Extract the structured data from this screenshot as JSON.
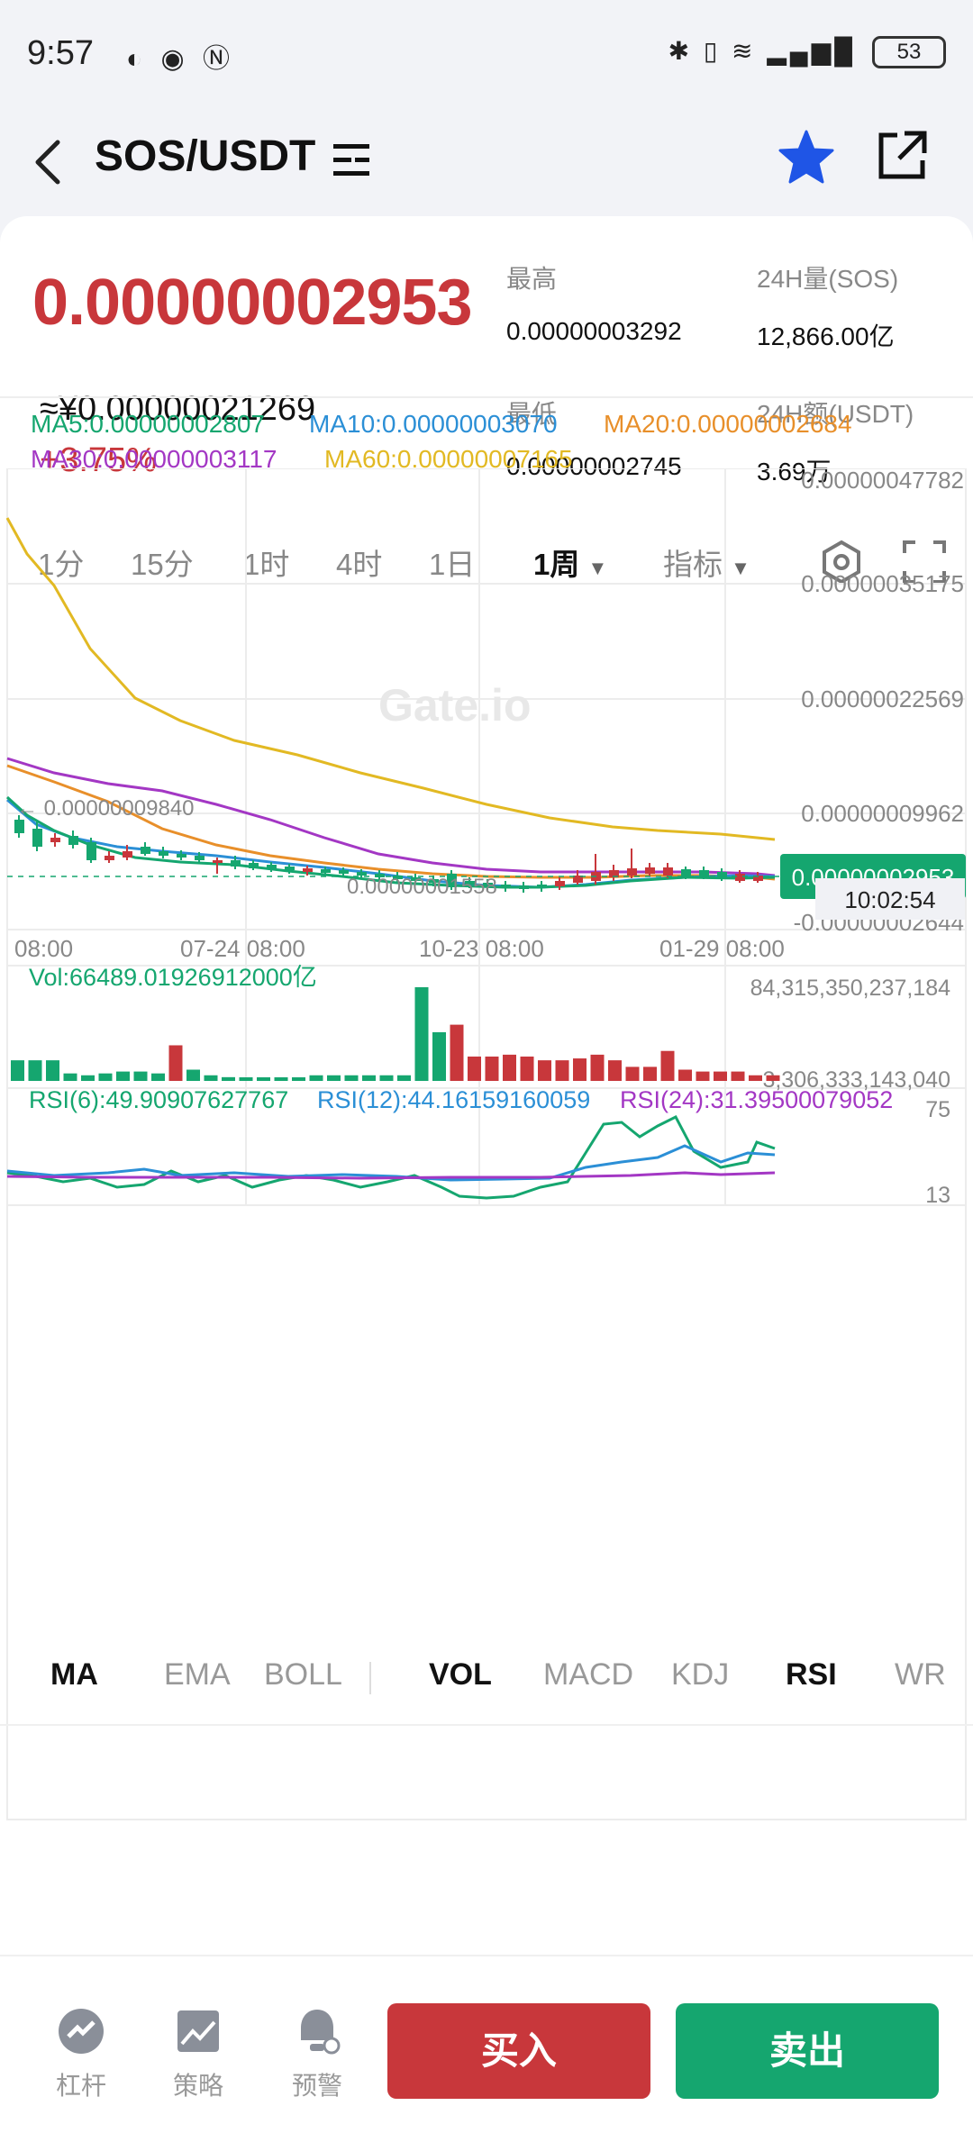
{
  "status": {
    "time": "9:57",
    "battery": "53"
  },
  "header": {
    "pair": "SOS/USDT"
  },
  "ticker": {
    "price": "0.00000002953",
    "cny": "≈¥0.00000021269",
    "change": "+3.75%",
    "high_label": "最高",
    "high": "0.00000003292",
    "low_label": "最低",
    "low": "0.00000002745",
    "vol_label": "24H量(SOS)",
    "vol": "12,866.00亿",
    "amount_label": "24H额(USDT)",
    "amount": "3.69万"
  },
  "timeframes": [
    "1分",
    "15分",
    "1时",
    "4时",
    "1日",
    "1周",
    "指标"
  ],
  "ma_legend": {
    "ma5": "MA5:0.00000002807",
    "ma10": "MA10:0.00000003070",
    "ma20": "MA20:0.00000002684",
    "ma30": "MA30:0.00000003117",
    "ma60": "MA60:0.00000007165"
  },
  "colors": {
    "up": "#c8373b",
    "down": "#15a66f",
    "ma5": "#15a66f",
    "ma10": "#2b8fd6",
    "ma20": "#e88f2a",
    "ma30": "#a337c4",
    "ma60": "#e2b923"
  },
  "chart_data": {
    "type": "candlestick",
    "y_ticks": [
      "0.00000047782",
      "0.00000035175",
      "0.00000022569",
      "0.00000009962",
      "-0.00000002644"
    ],
    "x_ticks": [
      "08:00",
      "07-24 08:00",
      "10-23 08:00",
      "01-29 08:00"
    ],
    "high_marker": "← 0.00000009840",
    "low_marker": "0.00000001558",
    "last_price_label": "0.00000002953",
    "countdown": "10:02:54",
    "watermark": "Gate.io",
    "volume": {
      "label": "Vol:66489.01926912000亿",
      "max_tick": "84,315,350,237,184",
      "min_tick": "3,306,333,143,040",
      "bars_relative": [
        0.22,
        0.22,
        0.22,
        0.08,
        0.06,
        0.08,
        0.1,
        0.1,
        0.08,
        0.38,
        0.12,
        0.06,
        0.04,
        0.03,
        0.03,
        0.03,
        0.03,
        0.06,
        0.06,
        0.06,
        0.06,
        0.06,
        0.06,
        1.0,
        0.52,
        0.6,
        0.26,
        0.26,
        0.28,
        0.26,
        0.22,
        0.22,
        0.24,
        0.28,
        0.22,
        0.15,
        0.15,
        0.32,
        0.12,
        0.1,
        0.1,
        0.1,
        0.06,
        0.06
      ]
    },
    "rsi": {
      "legend": [
        "RSI(6):49.90907627767",
        "RSI(12):44.16159160059",
        "RSI(24):31.39500079052"
      ],
      "max_tick": "75",
      "min_tick": "13"
    }
  },
  "indicator_tabs": [
    "MA",
    "EMA",
    "BOLL",
    "VOL",
    "MACD",
    "KDJ",
    "RSI",
    "WR"
  ],
  "bottom": {
    "leverage": "杠杆",
    "strategy": "策略",
    "alert": "预警",
    "buy": "买入",
    "sell": "卖出"
  }
}
